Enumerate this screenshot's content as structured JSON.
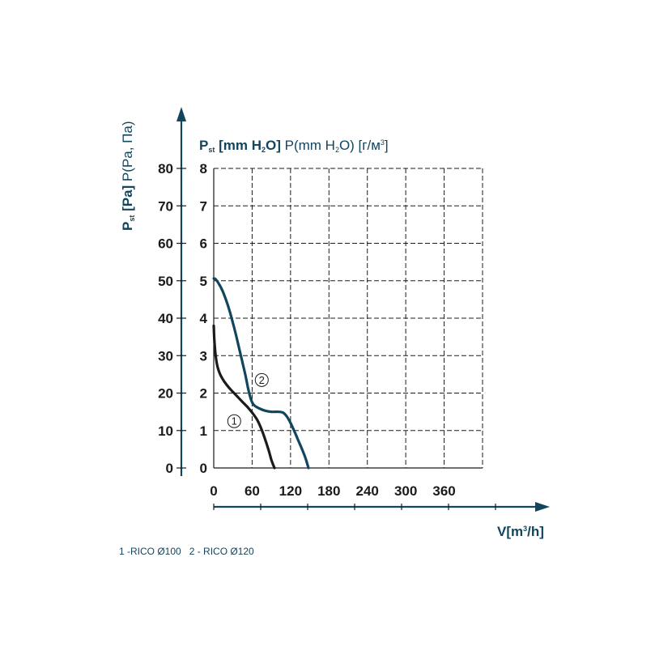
{
  "chart_data": {
    "type": "line",
    "y_title_left": {
      "parts": [
        "P",
        "st",
        " [Pa]",
        " P(Pa, Па)"
      ]
    },
    "y_title_top": {
      "parts": [
        "P",
        "st",
        " [mm H",
        "2",
        "O]",
        " P(mm H",
        "2",
        "O) [г/м",
        "3",
        "]"
      ]
    },
    "x_title": {
      "parts": [
        "V[m",
        "3",
        "/h]"
      ]
    },
    "y_ticks_pa": [
      "0",
      "10",
      "20",
      "30",
      "40",
      "50",
      "60",
      "70",
      "80"
    ],
    "y_ticks_mm": [
      "0",
      "1",
      "2",
      "3",
      "4",
      "5",
      "6",
      "7",
      "8"
    ],
    "x_ticks": [
      "0",
      "60",
      "120",
      "180",
      "240",
      "300",
      "360"
    ],
    "xlim": [
      0,
      420
    ],
    "ylim": [
      0,
      80
    ],
    "grid": true,
    "series": [
      {
        "name": "1",
        "color": "#1b1b1b",
        "x": [
          0,
          1,
          3,
          6,
          10,
          16,
          24,
          34,
          44,
          52,
          60,
          68,
          74,
          80,
          86,
          90,
          93,
          95
        ],
        "y": [
          38,
          34,
          30,
          27,
          25,
          23.2,
          21.4,
          19.6,
          17.8,
          16.4,
          14.8,
          12.8,
          10.6,
          7.8,
          4.6,
          2.2,
          0.8,
          0
        ]
      },
      {
        "name": "2",
        "color": "#12455e",
        "x": [
          0,
          3,
          8,
          14,
          20,
          26,
          32,
          38,
          44,
          50,
          54,
          58,
          61,
          64,
          70,
          80,
          90,
          100,
          108,
          114,
          120,
          126,
          132,
          138,
          143,
          146,
          148
        ],
        "y": [
          50.6,
          50.4,
          49.2,
          47.2,
          44.5,
          41.2,
          37.4,
          33.2,
          28.8,
          24.4,
          21,
          18.4,
          17.2,
          16.6,
          16,
          15.3,
          15,
          15,
          14.8,
          13.8,
          12,
          9.8,
          7.4,
          5,
          2.8,
          1.2,
          0
        ]
      }
    ],
    "markers": [
      {
        "label": "1",
        "x": 32,
        "y": 12.5
      },
      {
        "label": "2",
        "x": 75,
        "y": 23.5
      }
    ]
  },
  "legend": {
    "text": "1 -RICO Ø100   2 - RICO Ø120"
  }
}
